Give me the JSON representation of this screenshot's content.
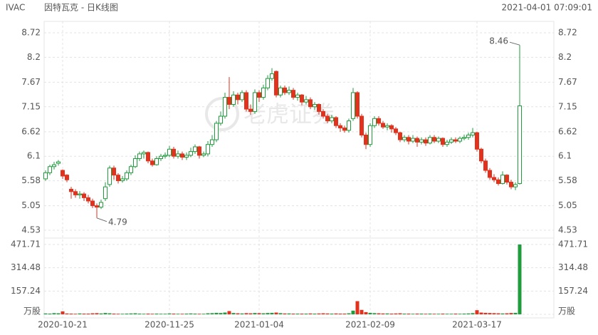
{
  "header": {
    "symbol": "IVAC",
    "title": "因特瓦克 - 日K线图",
    "timestamp": "2021-04-01 07:09:01"
  },
  "watermark": "老虎证券",
  "chart_data": {
    "type": "candlestick",
    "up_color": "#1f9d3d",
    "down_color": "#e2321e",
    "categories": [
      null,
      null,
      null,
      null,
      "2020-10-21",
      null,
      null,
      null,
      null,
      null,
      null,
      null,
      null,
      null,
      null,
      null,
      null,
      null,
      null,
      null,
      null,
      null,
      null,
      null,
      null,
      null,
      null,
      null,
      null,
      "2020-11-25",
      null,
      null,
      null,
      null,
      null,
      null,
      null,
      null,
      null,
      null,
      null,
      null,
      null,
      null,
      null,
      null,
      null,
      null,
      null,
      null,
      "2021-01-04",
      null,
      null,
      null,
      null,
      null,
      null,
      null,
      null,
      null,
      null,
      null,
      null,
      null,
      null,
      null,
      null,
      null,
      null,
      null,
      null,
      null,
      null,
      null,
      null,
      null,
      "2021-02-09",
      null,
      null,
      null,
      null,
      null,
      null,
      null,
      null,
      null,
      null,
      null,
      null,
      null,
      null,
      null,
      null,
      null,
      null,
      null,
      null,
      null,
      null,
      null,
      null,
      "2021-03-17",
      null,
      null,
      null,
      null,
      null,
      null,
      null,
      null,
      null,
      null
    ],
    "open": [
      5.62,
      5.75,
      5.88,
      5.95,
      5.8,
      5.7,
      5.4,
      5.35,
      5.28,
      5.3,
      5.22,
      5.15,
      5.05,
      5.02,
      5.2,
      5.5,
      5.85,
      5.7,
      5.58,
      5.62,
      5.75,
      5.88,
      6.05,
      6.15,
      6.18,
      6.0,
      5.92,
      6.05,
      6.1,
      6.12,
      6.25,
      6.1,
      6.15,
      6.08,
      6.12,
      6.2,
      6.3,
      6.12,
      6.15,
      6.35,
      6.45,
      6.8,
      6.95,
      7.35,
      7.2,
      7.4,
      7.3,
      7.45,
      7.1,
      7.05,
      7.45,
      7.35,
      7.55,
      7.75,
      7.9,
      7.4,
      7.55,
      7.45,
      7.5,
      7.35,
      7.4,
      7.25,
      7.3,
      7.15,
      7.2,
      7.05,
      6.95,
      6.85,
      6.92,
      6.75,
      6.7,
      6.65,
      6.9,
      7.45,
      6.95,
      6.55,
      6.35,
      6.75,
      6.9,
      6.8,
      6.72,
      6.75,
      6.68,
      6.6,
      6.45,
      6.5,
      6.42,
      6.48,
      6.4,
      6.45,
      6.38,
      6.5,
      6.42,
      6.48,
      6.35,
      6.4,
      6.45,
      6.42,
      6.48,
      6.5,
      6.55,
      6.6,
      6.25,
      6.0,
      5.8,
      5.65,
      5.6,
      5.52,
      5.7,
      5.55,
      5.45,
      5.52
    ],
    "high": [
      5.8,
      5.92,
      5.98,
      6.02,
      5.82,
      5.72,
      5.45,
      5.4,
      5.36,
      5.34,
      5.28,
      5.2,
      5.1,
      5.18,
      5.55,
      5.9,
      5.9,
      5.74,
      5.68,
      5.8,
      5.92,
      6.12,
      6.2,
      6.22,
      6.2,
      6.05,
      6.1,
      6.15,
      6.18,
      6.32,
      6.3,
      6.22,
      6.2,
      6.18,
      6.28,
      6.35,
      6.32,
      6.2,
      6.42,
      6.55,
      6.85,
      7.05,
      7.45,
      7.78,
      7.48,
      7.45,
      7.5,
      7.5,
      7.2,
      7.52,
      7.5,
      7.62,
      7.82,
      7.97,
      7.92,
      7.6,
      7.6,
      7.58,
      7.55,
      7.45,
      7.42,
      7.38,
      7.35,
      7.25,
      7.22,
      7.1,
      7.0,
      6.98,
      6.95,
      6.8,
      6.75,
      6.9,
      7.55,
      7.48,
      7.0,
      6.6,
      6.8,
      6.95,
      6.95,
      6.85,
      6.8,
      6.78,
      6.72,
      6.62,
      6.55,
      6.55,
      6.55,
      6.52,
      6.5,
      6.5,
      6.55,
      6.55,
      6.52,
      6.5,
      6.45,
      6.5,
      6.5,
      6.52,
      6.56,
      6.6,
      6.7,
      6.62,
      6.28,
      6.05,
      5.85,
      5.72,
      5.65,
      5.78,
      5.72,
      5.6,
      5.55,
      8.46
    ],
    "low": [
      5.58,
      5.7,
      5.82,
      5.9,
      5.62,
      5.55,
      5.2,
      5.22,
      5.2,
      5.15,
      5.1,
      5.0,
      4.79,
      4.98,
      5.15,
      5.45,
      5.6,
      5.52,
      5.54,
      5.58,
      5.7,
      5.85,
      6.0,
      6.05,
      5.95,
      5.88,
      5.9,
      6.0,
      6.05,
      6.08,
      6.05,
      6.05,
      6.02,
      6.02,
      6.08,
      6.15,
      6.05,
      6.08,
      6.1,
      6.3,
      6.4,
      6.75,
      6.9,
      7.1,
      7.15,
      7.2,
      7.25,
      7.05,
      6.98,
      7.0,
      7.25,
      7.3,
      7.5,
      7.7,
      7.35,
      7.35,
      7.4,
      7.4,
      7.3,
      7.28,
      7.18,
      7.2,
      7.1,
      7.08,
      6.98,
      6.9,
      6.8,
      6.8,
      6.7,
      6.62,
      6.6,
      6.6,
      6.85,
      6.9,
      6.5,
      6.25,
      6.3,
      6.7,
      6.75,
      6.68,
      6.65,
      6.6,
      6.55,
      6.4,
      6.4,
      6.35,
      6.38,
      6.3,
      6.35,
      6.32,
      6.35,
      6.38,
      6.38,
      6.3,
      6.3,
      6.36,
      6.38,
      6.38,
      6.44,
      6.45,
      6.5,
      6.2,
      5.95,
      5.75,
      5.6,
      5.55,
      5.48,
      5.5,
      5.5,
      5.4,
      5.38,
      5.5
    ],
    "close": [
      5.75,
      5.88,
      5.92,
      5.98,
      5.68,
      5.6,
      5.35,
      5.28,
      5.3,
      5.22,
      5.15,
      5.05,
      5.02,
      5.12,
      5.45,
      5.85,
      5.7,
      5.58,
      5.62,
      5.75,
      5.88,
      6.05,
      6.15,
      6.18,
      6.0,
      5.92,
      6.05,
      6.1,
      6.12,
      6.25,
      6.1,
      6.15,
      6.08,
      6.12,
      6.2,
      6.3,
      6.12,
      6.15,
      6.35,
      6.45,
      6.8,
      6.95,
      7.35,
      7.2,
      7.4,
      7.3,
      7.45,
      7.1,
      7.05,
      7.45,
      7.35,
      7.55,
      7.75,
      7.85,
      7.4,
      7.55,
      7.45,
      7.5,
      7.35,
      7.4,
      7.25,
      7.3,
      7.15,
      7.2,
      7.05,
      6.95,
      6.85,
      6.92,
      6.75,
      6.7,
      6.65,
      6.85,
      7.45,
      6.95,
      6.55,
      6.35,
      6.75,
      6.9,
      6.8,
      6.72,
      6.75,
      6.68,
      6.6,
      6.45,
      6.5,
      6.42,
      6.48,
      6.4,
      6.45,
      6.38,
      6.5,
      6.42,
      6.48,
      6.35,
      6.4,
      6.45,
      6.42,
      6.48,
      6.5,
      6.55,
      6.6,
      6.25,
      6.0,
      5.8,
      5.65,
      5.6,
      5.52,
      5.7,
      5.55,
      5.45,
      5.5,
      7.17
    ],
    "ylim": [
      4.53,
      8.72
    ],
    "yticks": [
      4.53,
      5.05,
      5.58,
      6.1,
      6.62,
      7.15,
      7.67,
      8.2,
      8.72
    ],
    "volume": {
      "values": [
        6,
        5,
        8,
        7,
        20,
        6,
        5,
        4,
        6,
        5,
        5,
        7,
        8,
        6,
        9,
        7,
        5,
        4,
        4,
        5,
        6,
        7,
        5,
        4,
        5,
        4,
        5,
        4,
        4,
        6,
        5,
        4,
        4,
        5,
        6,
        5,
        4,
        4,
        7,
        8,
        10,
        9,
        12,
        22,
        9,
        7,
        6,
        8,
        7,
        9,
        8,
        7,
        9,
        10,
        12,
        8,
        6,
        6,
        5,
        5,
        5,
        5,
        6,
        5,
        6,
        7,
        6,
        5,
        6,
        5,
        5,
        7,
        25,
        89,
        30,
        15,
        10,
        8,
        7,
        6,
        6,
        5,
        6,
        7,
        5,
        5,
        4,
        5,
        5,
        4,
        5,
        4,
        4,
        5,
        4,
        4,
        5,
        4,
        5,
        6,
        8,
        28,
        12,
        10,
        9,
        8,
        7,
        6,
        7,
        9,
        10,
        471.71
      ],
      "ylim": [
        0,
        471.71
      ],
      "yticks": [
        {
          "value": 0,
          "label": "万股"
        },
        157.24,
        314.48,
        471.71
      ]
    }
  }
}
